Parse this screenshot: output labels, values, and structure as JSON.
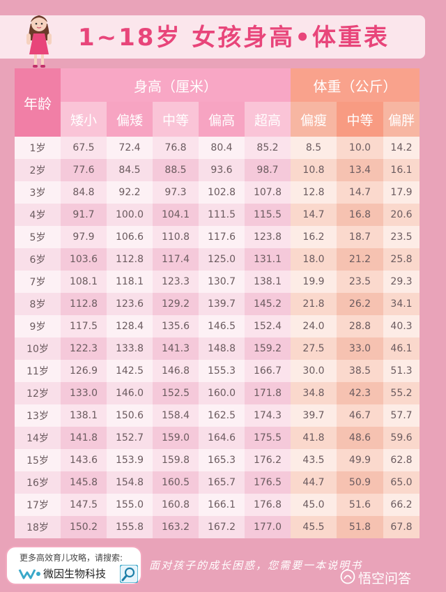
{
  "title": "1~18岁 女孩身高•体重表",
  "table": {
    "age_header": "年龄",
    "height_group": "身高（厘米）",
    "weight_group": "体重（公斤）",
    "height_columns": [
      "矮小",
      "偏矮",
      "中等",
      "偏高",
      "超高"
    ],
    "weight_columns": [
      "偏瘦",
      "中等",
      "偏胖"
    ],
    "rows": [
      {
        "age": "1岁",
        "h": [
          "67.5",
          "72.4",
          "76.8",
          "80.4",
          "85.2"
        ],
        "w": [
          "8.5",
          "10.0",
          "14.2"
        ]
      },
      {
        "age": "2岁",
        "h": [
          "77.6",
          "84.5",
          "88.5",
          "93.6",
          "98.7"
        ],
        "w": [
          "10.8",
          "13.4",
          "16.1"
        ]
      },
      {
        "age": "3岁",
        "h": [
          "84.8",
          "92.2",
          "97.3",
          "102.8",
          "107.8"
        ],
        "w": [
          "12.8",
          "14.7",
          "17.9"
        ]
      },
      {
        "age": "4岁",
        "h": [
          "91.7",
          "100.0",
          "104.1",
          "111.5",
          "115.5"
        ],
        "w": [
          "14.7",
          "16.8",
          "20.6"
        ]
      },
      {
        "age": "5岁",
        "h": [
          "97.9",
          "106.6",
          "110.8",
          "117.6",
          "123.8"
        ],
        "w": [
          "16.2",
          "18.7",
          "23.5"
        ]
      },
      {
        "age": "6岁",
        "h": [
          "103.6",
          "112.8",
          "117.4",
          "125.0",
          "131.1"
        ],
        "w": [
          "18.0",
          "21.2",
          "25.8"
        ]
      },
      {
        "age": "7岁",
        "h": [
          "108.1",
          "118.1",
          "123.3",
          "130.7",
          "138.1"
        ],
        "w": [
          "19.9",
          "23.5",
          "29.3"
        ]
      },
      {
        "age": "8岁",
        "h": [
          "112.8",
          "123.6",
          "129.2",
          "139.7",
          "145.2"
        ],
        "w": [
          "21.8",
          "26.2",
          "34.1"
        ]
      },
      {
        "age": "9岁",
        "h": [
          "117.5",
          "128.4",
          "135.6",
          "146.5",
          "152.4"
        ],
        "w": [
          "24.0",
          "28.8",
          "40.3"
        ]
      },
      {
        "age": "10岁",
        "h": [
          "122.3",
          "133.8",
          "141.3",
          "148.8",
          "159.2"
        ],
        "w": [
          "27.5",
          "33.0",
          "46.1"
        ]
      },
      {
        "age": "11岁",
        "h": [
          "126.9",
          "142.5",
          "146.8",
          "155.3",
          "166.7"
        ],
        "w": [
          "30.0",
          "38.5",
          "51.3"
        ]
      },
      {
        "age": "12岁",
        "h": [
          "133.0",
          "146.0",
          "152.5",
          "160.0",
          "171.8"
        ],
        "w": [
          "34.8",
          "42.3",
          "55.2"
        ]
      },
      {
        "age": "13岁",
        "h": [
          "138.1",
          "150.6",
          "158.4",
          "162.5",
          "174.3"
        ],
        "w": [
          "39.7",
          "46.7",
          "57.7"
        ]
      },
      {
        "age": "14岁",
        "h": [
          "141.8",
          "152.7",
          "159.0",
          "164.6",
          "175.5"
        ],
        "w": [
          "41.8",
          "48.6",
          "59.6"
        ]
      },
      {
        "age": "15岁",
        "h": [
          "143.6",
          "153.9",
          "159.8",
          "165.3",
          "176.2"
        ],
        "w": [
          "43.5",
          "49.9",
          "62.8"
        ]
      },
      {
        "age": "16岁",
        "h": [
          "145.8",
          "154.8",
          "160.5",
          "165.7",
          "176.5"
        ],
        "w": [
          "44.7",
          "50.9",
          "65.0"
        ]
      },
      {
        "age": "17岁",
        "h": [
          "147.5",
          "155.0",
          "160.8",
          "166.1",
          "176.8"
        ],
        "w": [
          "45.0",
          "51.6",
          "66.2"
        ]
      },
      {
        "age": "18岁",
        "h": [
          "150.2",
          "155.8",
          "163.2",
          "167.2",
          "177.0"
        ],
        "w": [
          "45.5",
          "51.8",
          "67.8"
        ]
      }
    ]
  },
  "footer": {
    "search_prompt": "更多高效育儿攻略，请搜索:",
    "brand": "微因生物科技",
    "slogan": "面对孩子的成长困惑，您需要一本说明书",
    "watermark": "悟空问答"
  },
  "colors": {
    "background": "#e9a3b9",
    "title": "#e8457a",
    "height_header": "#f8a7c5",
    "weight_header": "#f9a28c"
  },
  "icons": [
    "girl-illustration",
    "brand-logo-icon",
    "search-icon",
    "watermark-logo-icon"
  ]
}
